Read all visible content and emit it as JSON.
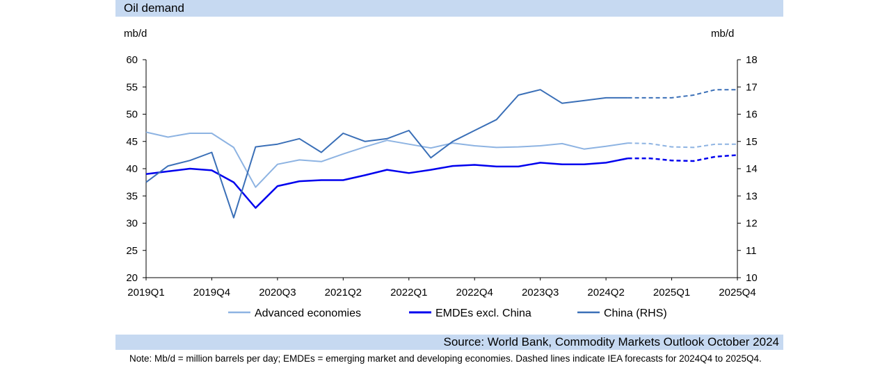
{
  "header": {
    "title": "Oil demand"
  },
  "units": {
    "left": "mb/d",
    "right": "mb/d"
  },
  "source": "Source: World Bank, Commodity Markets Outlook October 2024",
  "note": "Note: Mb/d = million barrels per day; EMDEs = emerging market and developing economies. Dashed lines indicate IEA forecasts for 2024Q4 to 2025Q4.",
  "chart_data": {
    "type": "line",
    "x": [
      "2019Q1",
      "2019Q2",
      "2019Q3",
      "2019Q4",
      "2020Q1",
      "2020Q2",
      "2020Q3",
      "2020Q4",
      "2021Q1",
      "2021Q2",
      "2021Q3",
      "2021Q4",
      "2022Q1",
      "2022Q2",
      "2022Q3",
      "2022Q4",
      "2023Q1",
      "2023Q2",
      "2023Q3",
      "2023Q4",
      "2024Q1",
      "2024Q2",
      "2024Q3",
      "2024Q4",
      "2025Q1",
      "2025Q2",
      "2025Q3",
      "2025Q4"
    ],
    "tick_labels": [
      "2019Q1",
      "2019Q4",
      "2020Q3",
      "2021Q2",
      "2022Q1",
      "2022Q4",
      "2023Q3",
      "2024Q2",
      "2025Q1",
      "2025Q4"
    ],
    "forecast_start": "2024Q3",
    "y_left": {
      "ylim": [
        20,
        60
      ],
      "ticks": [
        20,
        25,
        30,
        35,
        40,
        45,
        50,
        55,
        60
      ]
    },
    "y_right": {
      "ylim": [
        10,
        18
      ],
      "ticks": [
        10,
        11,
        12,
        13,
        14,
        15,
        16,
        17,
        18
      ]
    },
    "series": [
      {
        "name": "Advanced economies",
        "axis": "left",
        "color": "#8db3e2",
        "width": 2,
        "values": [
          46.7,
          45.8,
          46.5,
          46.5,
          43.9,
          36.6,
          40.8,
          41.6,
          41.3,
          42.7,
          44.0,
          45.2,
          44.5,
          43.8,
          44.7,
          44.2,
          43.9,
          44.0,
          44.2,
          44.6,
          43.6,
          44.1,
          44.7,
          44.6,
          44.0,
          43.9,
          44.5,
          44.5
        ]
      },
      {
        "name": "EMDEs excl. China",
        "axis": "left",
        "color": "#0000ee",
        "width": 2.5,
        "values": [
          39.0,
          39.5,
          40.0,
          39.7,
          37.5,
          32.8,
          36.8,
          37.7,
          37.9,
          37.9,
          38.8,
          39.8,
          39.2,
          39.8,
          40.5,
          40.7,
          40.4,
          40.4,
          41.1,
          40.8,
          40.8,
          41.1,
          41.9,
          41.9,
          41.5,
          41.4,
          42.2,
          42.5
        ]
      },
      {
        "name": "China (RHS)",
        "axis": "right",
        "color": "#3a6fb7",
        "width": 2,
        "values": [
          13.5,
          14.1,
          14.3,
          14.6,
          12.2,
          14.8,
          14.9,
          15.1,
          14.6,
          15.3,
          15.0,
          15.1,
          15.4,
          14.4,
          15.0,
          15.4,
          15.8,
          16.7,
          16.9,
          16.4,
          16.5,
          16.6,
          16.6,
          16.6,
          16.6,
          16.7,
          16.9,
          16.9
        ]
      }
    ]
  }
}
